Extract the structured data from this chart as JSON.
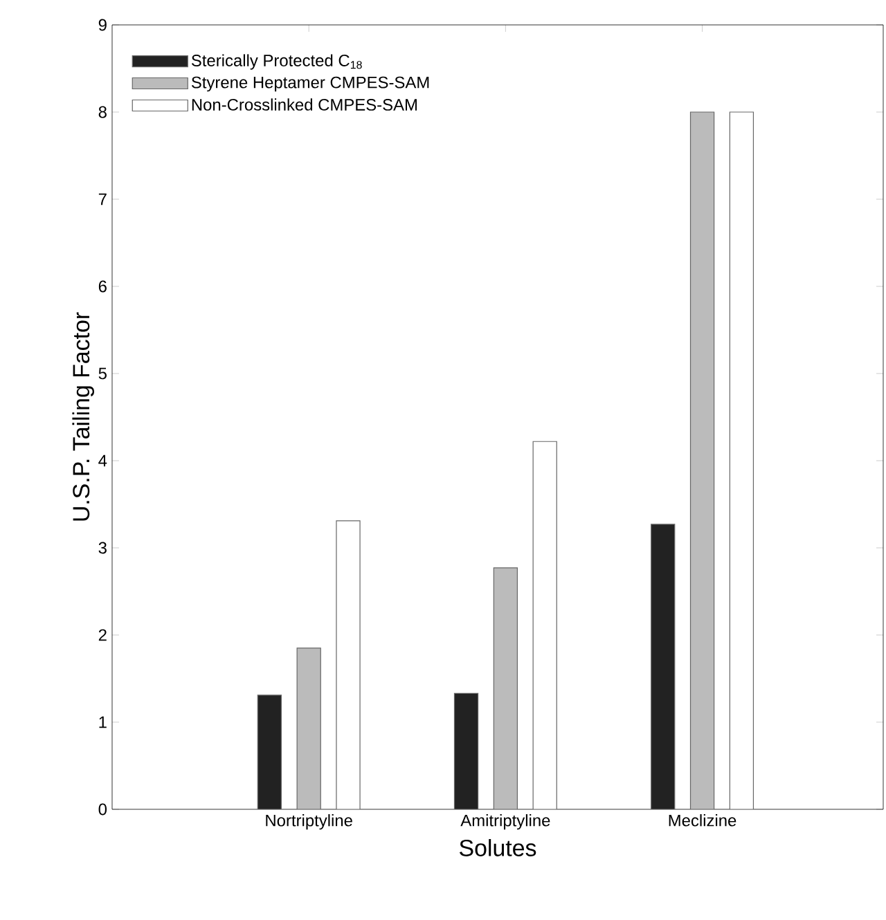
{
  "chart_data": {
    "type": "bar",
    "xlabel": "Solutes",
    "ylabel": "U.S.P. Tailing Factor",
    "categories": [
      "Nortriptyline",
      "Amitriptyline",
      "Meclizine"
    ],
    "series": [
      {
        "name": "Sterically Protected C$_{18}$",
        "color": "#222222",
        "values": [
          1.31,
          1.33,
          3.27
        ]
      },
      {
        "name": "Styrene Heptamer CMPES-SAM",
        "color": "#bbbbbb",
        "values": [
          1.85,
          2.77,
          8.0
        ]
      },
      {
        "name": "Non-Crosslinked CMPES-SAM",
        "color": "#ffffff",
        "values": [
          3.31,
          4.22,
          8.0
        ]
      }
    ],
    "ylim": [
      0,
      9
    ],
    "yticks": [
      0,
      1,
      2,
      3,
      4,
      5,
      6,
      7,
      8,
      9
    ],
    "legend": "top left",
    "grid": false
  }
}
